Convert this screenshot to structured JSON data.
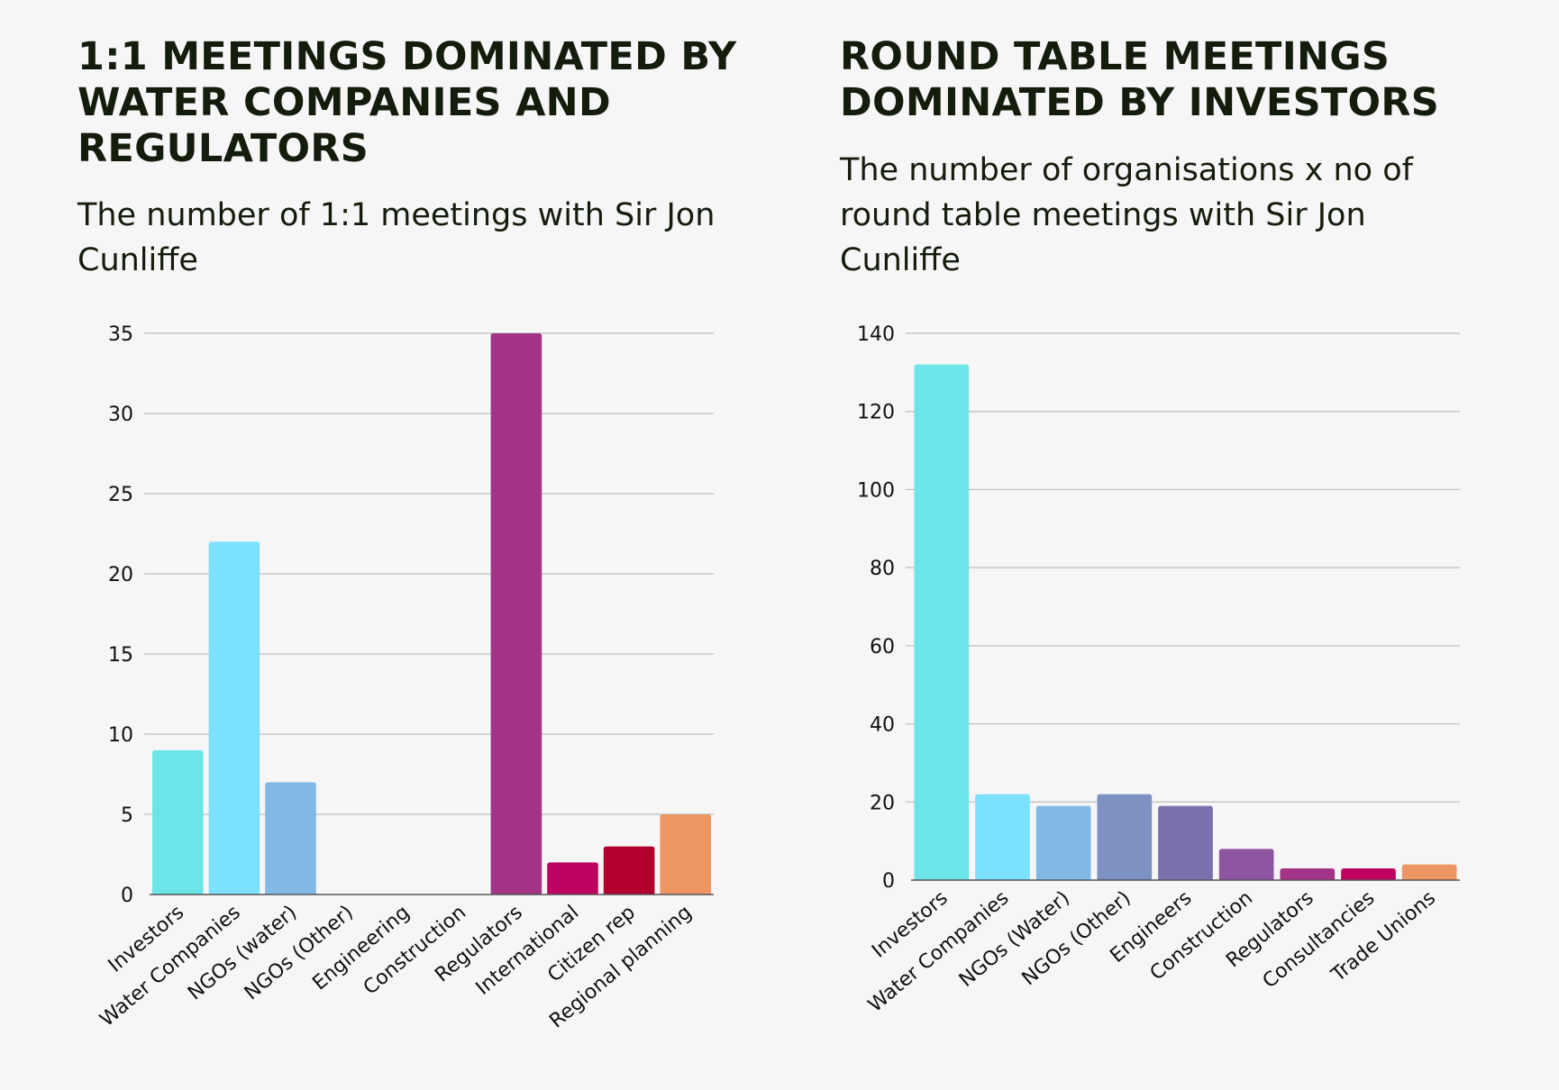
{
  "panels": {
    "left": {
      "title": "1:1 MEETINGS DOMINATED BY WATER COMPANIES AND REGULATORS",
      "subtitle": "The number of 1:1 meetings with Sir Jon Cunliffe"
    },
    "right": {
      "title": "ROUND TABLE MEETINGS DOMINATED BY INVESTORS",
      "subtitle": "The number of organisations x no of round table meetings with Sir Jon Cunliffe"
    }
  },
  "chart_data": [
    {
      "type": "bar",
      "title": "1:1 MEETINGS DOMINATED BY WATER COMPANIES AND REGULATORS",
      "subtitle": "The number of 1:1 meetings with Sir Jon Cunliffe",
      "xlabel": "",
      "ylabel": "",
      "categories": [
        "Investors",
        "Water Companies",
        "NGOs (water)",
        "NGOs (Other)",
        "Engineering",
        "Construction",
        "Regulators",
        "International",
        "Citizen rep",
        "Regional planning"
      ],
      "values": [
        9,
        22,
        7,
        0,
        0,
        0,
        35,
        2,
        3,
        5
      ],
      "colors": [
        "#6ce5e8",
        "#7ce0ff",
        "#80b9e6",
        "#7d91c2",
        "#7b6fae",
        "#8d55a1",
        "#a23386",
        "#bd035f",
        "#b2002e",
        "#ed9664"
      ],
      "ylim": [
        0,
        35
      ],
      "yticks": [
        0,
        5,
        10,
        15,
        20,
        25,
        30,
        35
      ],
      "grid": true,
      "legend": "none"
    },
    {
      "type": "bar",
      "title": "ROUND TABLE MEETINGS DOMINATED BY INVESTORS",
      "subtitle": "The number of organisations x no of round table meetings with Sir Jon Cunliffe",
      "xlabel": "",
      "ylabel": "",
      "categories": [
        "Investors",
        "Water Companies",
        "NGOs (Water)",
        "NGOs (Other)",
        "Engineers",
        "Construction",
        "Regulators",
        "Consultancies",
        "Trade Unions"
      ],
      "values": [
        132,
        22,
        19,
        22,
        19,
        8,
        3,
        3,
        4
      ],
      "colors": [
        "#6ce5e8",
        "#7ce0ff",
        "#80b9e6",
        "#7d91c2",
        "#7b6fae",
        "#8d55a1",
        "#a23386",
        "#bd035f",
        "#ed9664"
      ],
      "ylim": [
        0,
        140
      ],
      "yticks": [
        0,
        20,
        40,
        60,
        80,
        100,
        120,
        140
      ],
      "grid": true,
      "legend": "none"
    }
  ]
}
